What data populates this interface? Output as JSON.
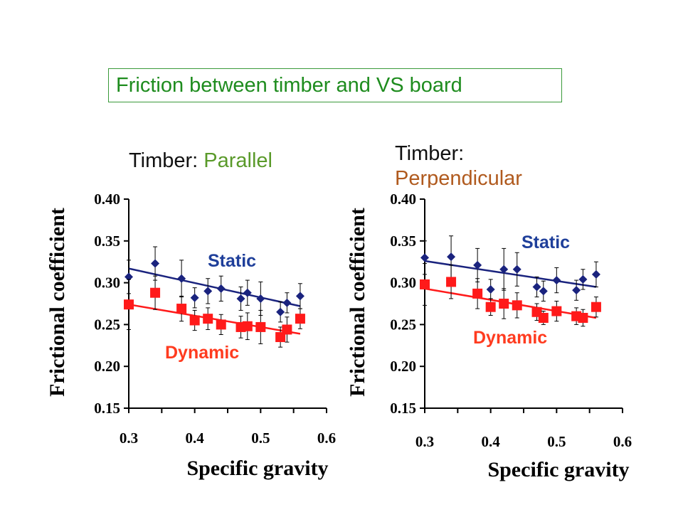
{
  "slide": {
    "title": "Friction between timber and VS board",
    "left_caption_prefix": "Timber: ",
    "left_caption_value": "Parallel",
    "right_caption_prefix": "Timber:",
    "right_caption_value": "Perpendicular"
  },
  "colors": {
    "static": "#1a237e",
    "dynamic": "#ff1a1a",
    "static_label": "#1f3f9a",
    "dynamic_label": "#ff3b1f"
  },
  "chart_data": [
    {
      "type": "scatter",
      "xlabel": "Specific gravity",
      "ylabel": "Frictional coefficient",
      "xlim": [
        0.3,
        0.6
      ],
      "ylim": [
        0.15,
        0.4
      ],
      "xticks": [
        "0.3",
        "0.4",
        "0.5",
        "0.6"
      ],
      "yticks": [
        "0.15",
        "0.20",
        "0.25",
        "0.30",
        "0.35",
        "0.40"
      ],
      "series": [
        {
          "name": "Static",
          "marker": "diamond",
          "x": [
            0.3,
            0.34,
            0.38,
            0.4,
            0.42,
            0.44,
            0.47,
            0.48,
            0.5,
            0.53,
            0.54,
            0.56
          ],
          "y": [
            0.307,
            0.323,
            0.305,
            0.282,
            0.29,
            0.293,
            0.281,
            0.288,
            0.281,
            0.265,
            0.276,
            0.284
          ],
          "err": [
            0.02,
            0.02,
            0.022,
            0.012,
            0.015,
            0.015,
            0.014,
            0.015,
            0.02,
            0.012,
            0.012,
            0.015
          ],
          "fit": [
            [
              0.3,
              0.317
            ],
            [
              0.56,
              0.272
            ]
          ]
        },
        {
          "name": "Dynamic",
          "marker": "square",
          "x": [
            0.3,
            0.34,
            0.38,
            0.4,
            0.42,
            0.44,
            0.47,
            0.48,
            0.5,
            0.53,
            0.54,
            0.56
          ],
          "y": [
            0.274,
            0.288,
            0.269,
            0.255,
            0.257,
            0.25,
            0.247,
            0.248,
            0.247,
            0.235,
            0.244,
            0.257
          ],
          "err": [
            0.03,
            0.02,
            0.015,
            0.012,
            0.013,
            0.012,
            0.013,
            0.016,
            0.02,
            0.012,
            0.015,
            0.012
          ],
          "fit": [
            [
              0.3,
              0.274
            ],
            [
              0.56,
              0.239
            ]
          ]
        }
      ]
    },
    {
      "type": "scatter",
      "xlabel": "Specific gravity",
      "ylabel": "Frictional coefficient",
      "xlim": [
        0.3,
        0.6
      ],
      "ylim": [
        0.15,
        0.4
      ],
      "xticks": [
        "0.3",
        "0.4",
        "0.5",
        "0.6"
      ],
      "yticks": [
        "0.15",
        "0.20",
        "0.25",
        "0.30",
        "0.35",
        "0.40"
      ],
      "series": [
        {
          "name": "Static",
          "marker": "diamond",
          "x": [
            0.3,
            0.34,
            0.38,
            0.4,
            0.42,
            0.44,
            0.47,
            0.48,
            0.5,
            0.53,
            0.54,
            0.56
          ],
          "y": [
            0.33,
            0.331,
            0.321,
            0.292,
            0.316,
            0.316,
            0.295,
            0.29,
            0.303,
            0.291,
            0.304,
            0.31
          ],
          "err": [
            0.02,
            0.025,
            0.02,
            0.012,
            0.025,
            0.02,
            0.012,
            0.012,
            0.015,
            0.012,
            0.012,
            0.015
          ],
          "fit": [
            [
              0.3,
              0.326
            ],
            [
              0.56,
              0.295
            ]
          ]
        },
        {
          "name": "Dynamic",
          "marker": "square",
          "x": [
            0.3,
            0.34,
            0.38,
            0.4,
            0.42,
            0.44,
            0.47,
            0.48,
            0.5,
            0.53,
            0.54,
            0.56
          ],
          "y": [
            0.298,
            0.301,
            0.287,
            0.271,
            0.275,
            0.273,
            0.265,
            0.258,
            0.266,
            0.26,
            0.258,
            0.271
          ],
          "err": [
            0.025,
            0.02,
            0.018,
            0.01,
            0.018,
            0.015,
            0.01,
            0.008,
            0.012,
            0.01,
            0.01,
            0.012
          ],
          "fit": [
            [
              0.3,
              0.293
            ],
            [
              0.56,
              0.258
            ]
          ]
        }
      ]
    }
  ]
}
